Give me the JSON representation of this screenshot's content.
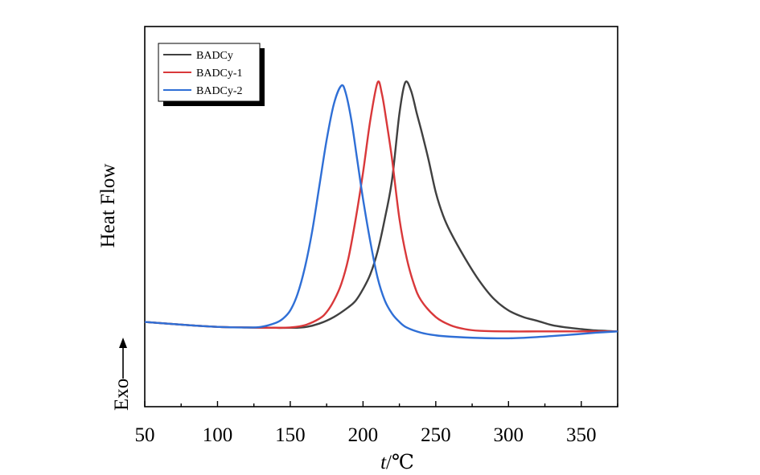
{
  "chart_data": {
    "type": "line",
    "title": "",
    "xlabel_italic": "t",
    "xlabel_rest": "/℃",
    "ylabel": "Heat Flow",
    "ylabel_note": "Exo",
    "xlim": [
      50,
      375
    ],
    "ylim": [
      0,
      100
    ],
    "xticks": [
      "50",
      "100",
      "150",
      "200",
      "250",
      "300",
      "350"
    ],
    "grid": false,
    "legend_position": "top-left",
    "series": [
      {
        "name": "BADCy",
        "color": "#404040",
        "x": [
          50,
          80,
          100,
          120,
          140,
          150,
          160,
          170,
          180,
          190,
          195,
          200,
          205,
          210,
          215,
          220,
          225,
          229,
          233,
          237,
          240,
          245,
          250,
          255,
          260,
          270,
          280,
          290,
          300,
          310,
          320,
          330,
          340,
          350,
          360,
          375
        ],
        "y": [
          18.5,
          17.5,
          17.0,
          16.8,
          16.7,
          16.7,
          16.9,
          18.0,
          20.0,
          23.0,
          25.0,
          28.5,
          33.0,
          40.0,
          50.0,
          62.0,
          82.0,
          91.5,
          89.0,
          82.0,
          77.0,
          68.0,
          58.0,
          51.0,
          46.0,
          38.0,
          31.0,
          25.5,
          22.0,
          20.0,
          18.8,
          17.5,
          16.8,
          16.3,
          15.9,
          15.6
        ]
      },
      {
        "name": "BADCy-1",
        "color": "#d9383a",
        "x": [
          50,
          80,
          100,
          120,
          140,
          150,
          160,
          170,
          175,
          180,
          185,
          190,
          195,
          200,
          205,
          210,
          213,
          216,
          220,
          225,
          230,
          235,
          240,
          250,
          260,
          270,
          280,
          300,
          320,
          340,
          360,
          375
        ],
        "y": [
          18.5,
          17.5,
          17.0,
          16.8,
          16.7,
          16.8,
          17.5,
          19.5,
          21.5,
          25.0,
          30.0,
          38.0,
          50.0,
          64.0,
          80.0,
          91.5,
          88.0,
          80.0,
          68.0,
          50.0,
          38.0,
          30.0,
          25.0,
          20.0,
          17.5,
          16.3,
          15.8,
          15.6,
          15.6,
          15.6,
          15.6,
          15.6
        ]
      },
      {
        "name": "BADCy-2",
        "color": "#2f6fd6",
        "x": [
          50,
          80,
          100,
          120,
          130,
          140,
          145,
          150,
          155,
          160,
          165,
          170,
          175,
          180,
          185,
          188,
          192,
          196,
          200,
          205,
          210,
          215,
          220,
          225,
          230,
          240,
          250,
          260,
          280,
          300,
          320,
          340,
          360,
          375
        ],
        "y": [
          18.5,
          17.5,
          17.0,
          16.8,
          17.0,
          18.2,
          19.5,
          22.0,
          27.0,
          35.0,
          46.0,
          60.0,
          74.0,
          85.0,
          90.5,
          88.5,
          80.0,
          68.0,
          56.0,
          43.0,
          32.0,
          25.0,
          21.0,
          18.5,
          16.8,
          15.2,
          14.4,
          14.0,
          13.6,
          13.5,
          13.9,
          14.5,
          15.2,
          15.6
        ]
      }
    ]
  }
}
